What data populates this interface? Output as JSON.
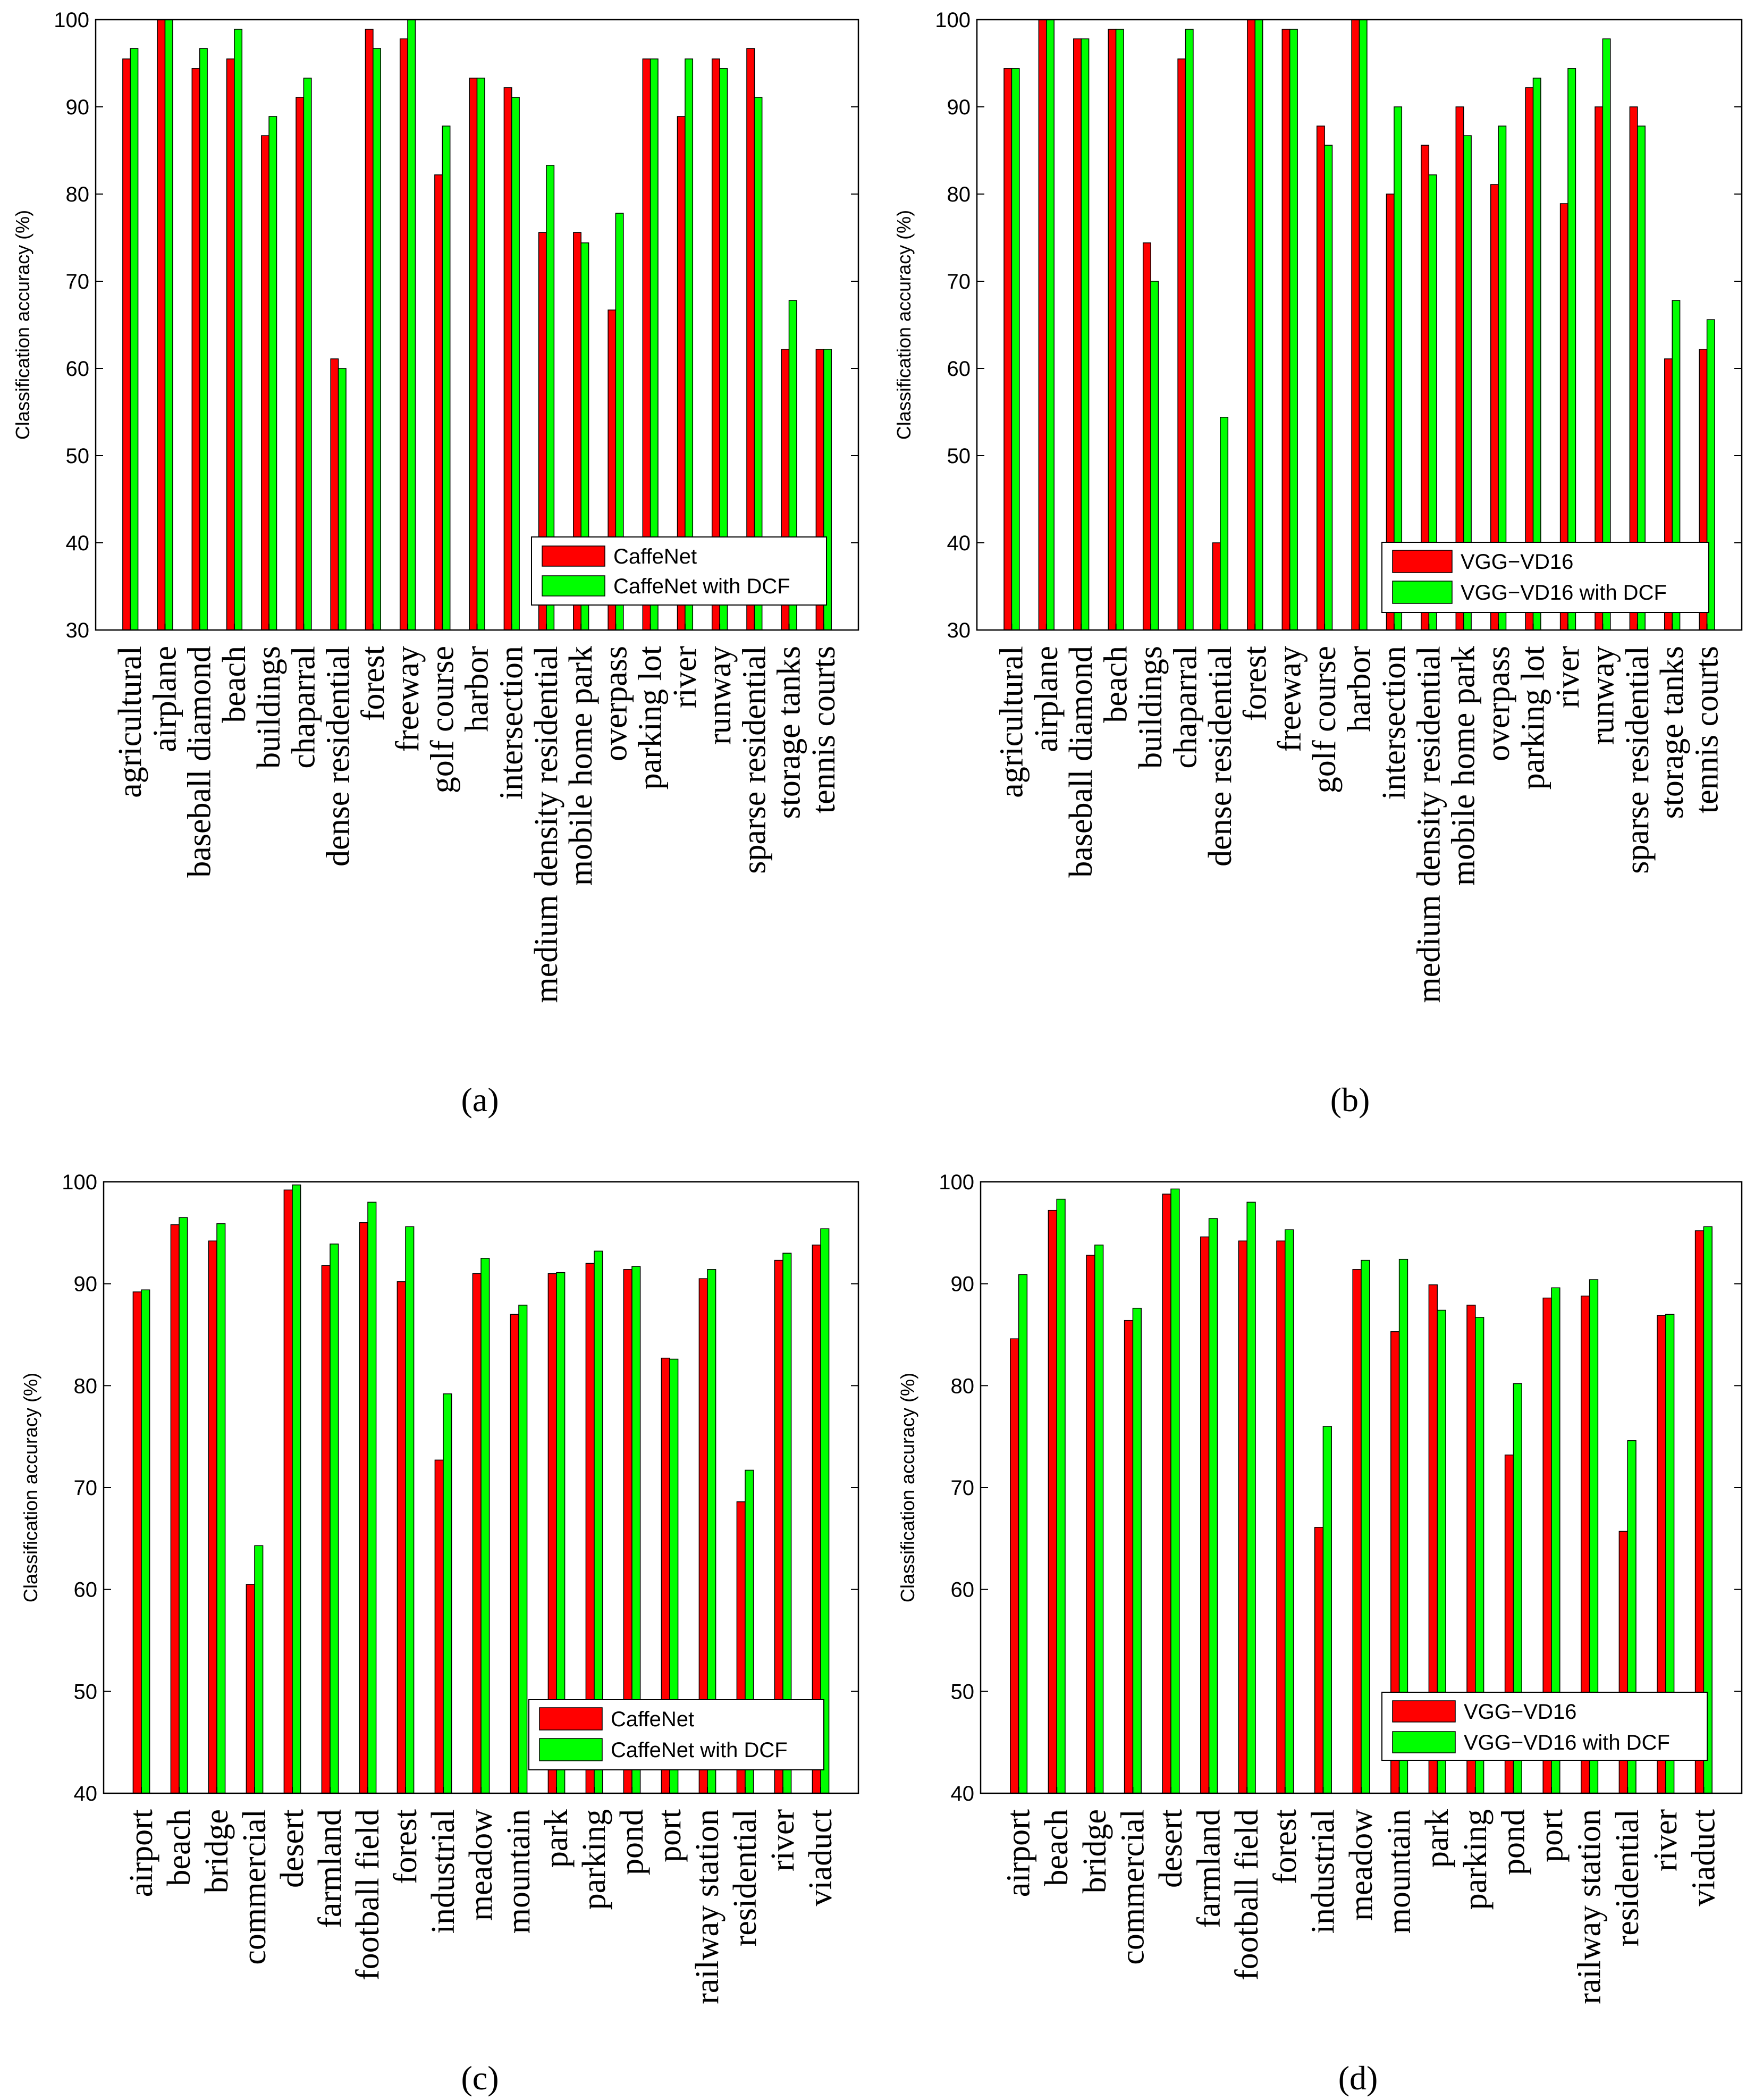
{
  "colors": {
    "series_a": "#ff0000",
    "series_b": "#00ff00",
    "axis": "#000000",
    "background": "#ffffff"
  },
  "chart_data": [
    {
      "panel": "(a)",
      "type": "bar",
      "title": "",
      "xlabel": "",
      "ylabel": "Classification accuracy (%)",
      "ylim": [
        30,
        100
      ],
      "yticks": [
        30,
        40,
        50,
        60,
        70,
        80,
        90,
        100
      ],
      "grid": false,
      "legend": "bottom-right",
      "categories": [
        "agricultural",
        "airplane",
        "baseball diamond",
        "beach",
        "buildings",
        "chaparral",
        "dense residential",
        "forest",
        "freeway",
        "golf course",
        "harbor",
        "intersection",
        "medium density residential",
        "mobile home park",
        "overpass",
        "parking lot",
        "river",
        "runway",
        "sparse residential",
        "storage tanks",
        "tennis courts"
      ],
      "series": [
        {
          "name": "CaffeNet",
          "color": "#ff0000",
          "values": [
            95.5,
            100,
            94.4,
            95.5,
            86.7,
            91.1,
            61.1,
            98.9,
            97.8,
            82.2,
            93.3,
            92.2,
            75.6,
            75.6,
            66.7,
            95.5,
            88.9,
            95.5,
            96.7,
            62.2,
            62.2
          ]
        },
        {
          "name": "CaffeNet with DCF",
          "color": "#00ff00",
          "values": [
            96.7,
            100,
            96.7,
            98.9,
            88.9,
            93.3,
            60.0,
            96.7,
            100,
            87.8,
            93.3,
            91.1,
            83.3,
            74.4,
            77.8,
            95.5,
            95.5,
            94.4,
            91.1,
            67.8,
            62.2
          ]
        }
      ]
    },
    {
      "panel": "(b)",
      "type": "bar",
      "title": "",
      "xlabel": "",
      "ylabel": "Classification accuracy (%)",
      "ylim": [
        30,
        100
      ],
      "yticks": [
        30,
        40,
        50,
        60,
        70,
        80,
        90,
        100
      ],
      "grid": false,
      "legend": "bottom-right",
      "categories": [
        "agricultural",
        "airplane",
        "baseball diamond",
        "beach",
        "buildings",
        "chaparral",
        "dense residential",
        "forest",
        "freeway",
        "golf course",
        "harbor",
        "intersection",
        "medium density residential",
        "mobile home park",
        "overpass",
        "parking lot",
        "river",
        "runway",
        "sparse residential",
        "storage tanks",
        "tennis courts"
      ],
      "series": [
        {
          "name": "VGG−VD16",
          "color": "#ff0000",
          "values": [
            94.4,
            100,
            97.8,
            98.9,
            74.4,
            95.5,
            40.0,
            100,
            98.9,
            87.8,
            100,
            80.0,
            85.6,
            90.0,
            81.1,
            92.2,
            78.9,
            90.0,
            90.0,
            61.1,
            62.2
          ]
        },
        {
          "name": "VGG−VD16 with DCF",
          "color": "#00ff00",
          "values": [
            94.4,
            100,
            97.8,
            98.9,
            70.0,
            98.9,
            54.4,
            100,
            98.9,
            85.6,
            100,
            90.0,
            82.2,
            86.7,
            87.8,
            93.3,
            94.4,
            97.8,
            87.8,
            67.8,
            65.6
          ]
        }
      ]
    },
    {
      "panel": "(c)",
      "type": "bar",
      "title": "",
      "xlabel": "",
      "ylabel": "Classification accuracy (%)",
      "ylim": [
        40,
        100
      ],
      "yticks": [
        40,
        50,
        60,
        70,
        80,
        90,
        100
      ],
      "grid": false,
      "legend": "bottom-right",
      "categories": [
        "airport",
        "beach",
        "bridge",
        "commercial",
        "desert",
        "farmland",
        "football field",
        "forest",
        "industrial",
        "meadow",
        "mountain",
        "park",
        "parking",
        "pond",
        "port",
        "railway station",
        "residential",
        "river",
        "viaduct"
      ],
      "series": [
        {
          "name": "CaffeNet",
          "color": "#ff0000",
          "values": [
            89.2,
            95.8,
            94.2,
            60.5,
            99.2,
            91.8,
            96.0,
            90.2,
            72.7,
            91.0,
            87.0,
            91.0,
            92.0,
            91.4,
            82.7,
            90.5,
            68.6,
            92.3,
            93.8
          ]
        },
        {
          "name": "CaffeNet with DCF",
          "color": "#00ff00",
          "values": [
            89.4,
            96.5,
            95.9,
            64.3,
            99.7,
            93.9,
            98.0,
            95.6,
            79.2,
            92.5,
            87.9,
            91.1,
            93.2,
            91.7,
            82.6,
            91.4,
            71.7,
            93.0,
            95.4
          ]
        }
      ]
    },
    {
      "panel": "(d)",
      "type": "bar",
      "title": "",
      "xlabel": "",
      "ylabel": "Classification accuracy (%)",
      "ylim": [
        40,
        100
      ],
      "yticks": [
        40,
        50,
        60,
        70,
        80,
        90,
        100
      ],
      "grid": false,
      "legend": "bottom-right",
      "categories": [
        "airport",
        "beach",
        "bridge",
        "commercial",
        "desert",
        "farmland",
        "football field",
        "forest",
        "industrial",
        "meadow",
        "mountain",
        "park",
        "parking",
        "pond",
        "port",
        "railway station",
        "residential",
        "river",
        "viaduct"
      ],
      "series": [
        {
          "name": "VGG−VD16",
          "color": "#ff0000",
          "values": [
            84.6,
            97.2,
            92.8,
            86.4,
            98.8,
            94.6,
            94.2,
            94.2,
            66.1,
            91.4,
            85.3,
            89.9,
            87.9,
            73.2,
            88.6,
            88.8,
            65.7,
            86.9,
            95.2
          ]
        },
        {
          "name": "VGG−VD16 with DCF",
          "color": "#00ff00",
          "values": [
            90.9,
            98.3,
            93.8,
            87.6,
            99.3,
            96.4,
            98.0,
            95.3,
            76.0,
            92.3,
            92.4,
            87.4,
            86.7,
            80.2,
            89.6,
            90.4,
            74.6,
            87.0,
            95.6
          ]
        }
      ]
    }
  ]
}
